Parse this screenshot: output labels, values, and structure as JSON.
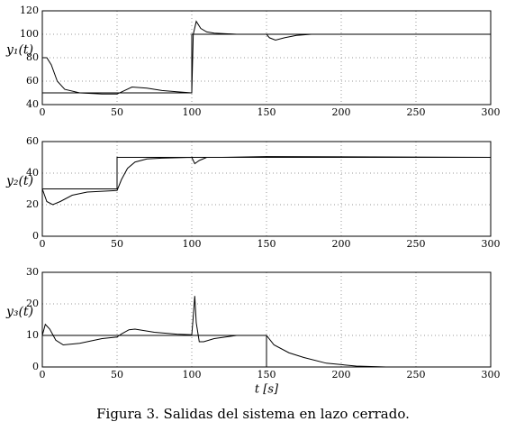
{
  "chart_data": [
    {
      "type": "line",
      "ylabel": "y₁(t)",
      "xlim": [
        0,
        300
      ],
      "ylim": [
        40,
        120
      ],
      "xticks": [
        0,
        50,
        100,
        150,
        200,
        250,
        300
      ],
      "yticks": [
        40,
        60,
        80,
        100,
        120
      ],
      "grid": true,
      "series": [
        {
          "color": "#000000",
          "x": [
            0,
            100,
            100,
            300
          ],
          "values": [
            50,
            50,
            100,
            100
          ]
        },
        {
          "color": "#000000",
          "x": [
            0,
            3,
            6,
            10,
            15,
            25,
            40,
            50,
            55,
            60,
            70,
            80,
            90,
            100,
            101,
            103,
            106,
            110,
            115,
            130,
            150,
            152,
            156,
            162,
            170,
            180,
            300
          ],
          "values": [
            80,
            80,
            74,
            60,
            53,
            50,
            49,
            49,
            52,
            55,
            54,
            52,
            51,
            50,
            100,
            111,
            105,
            102,
            101,
            100,
            100,
            97,
            95,
            97,
            99,
            100,
            100
          ]
        }
      ]
    },
    {
      "type": "line",
      "ylabel": "y₂(t)",
      "xlim": [
        0,
        300
      ],
      "ylim": [
        0,
        60
      ],
      "xticks": [
        0,
        50,
        100,
        150,
        200,
        250,
        300
      ],
      "yticks": [
        0,
        20,
        40,
        60
      ],
      "grid": true,
      "series": [
        {
          "color": "#000000",
          "x": [
            0,
            50,
            50,
            300
          ],
          "values": [
            30,
            30,
            50,
            50
          ]
        },
        {
          "color": "#000000",
          "x": [
            0,
            3,
            7,
            12,
            20,
            30,
            50,
            53,
            57,
            62,
            70,
            80,
            100,
            102,
            105,
            110,
            120,
            150,
            300
          ],
          "values": [
            30,
            22,
            20,
            22,
            26,
            28,
            29,
            36,
            43,
            47,
            49,
            49.5,
            50,
            46,
            48,
            50,
            50,
            50.5,
            50
          ]
        }
      ]
    },
    {
      "type": "line",
      "ylabel": "y₃(t)",
      "xlabel": "t [s]",
      "xlim": [
        0,
        300
      ],
      "ylim": [
        0,
        30
      ],
      "xticks": [
        0,
        50,
        100,
        150,
        200,
        250,
        300
      ],
      "yticks": [
        0,
        10,
        20,
        30
      ],
      "grid": true,
      "series": [
        {
          "color": "#000000",
          "x": [
            0,
            150,
            150,
            300
          ],
          "values": [
            10,
            10,
            0,
            0
          ]
        },
        {
          "color": "#000000",
          "x": [
            0,
            2,
            5,
            9,
            14,
            25,
            40,
            50,
            53,
            58,
            62,
            75,
            90,
            100,
            101,
            102,
            103,
            105,
            108,
            115,
            130,
            150,
            155,
            165,
            175,
            190,
            210,
            230,
            300
          ],
          "values": [
            10,
            13.5,
            12,
            8.5,
            7,
            7.5,
            9,
            9.5,
            10.5,
            11.8,
            12,
            11,
            10.4,
            10.2,
            16,
            22.5,
            14,
            8,
            8,
            9,
            10,
            10,
            7,
            4.5,
            3,
            1.2,
            0.3,
            0,
            0
          ]
        }
      ]
    }
  ],
  "caption": "Figura 3. Salidas del sistema en lazo cerrado."
}
